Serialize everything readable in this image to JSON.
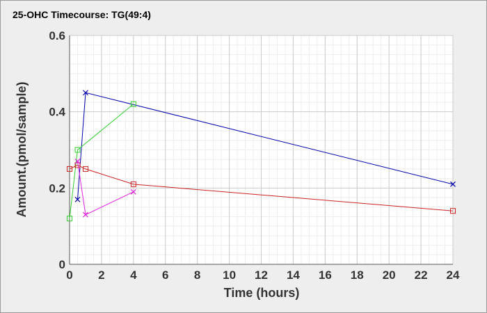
{
  "chart_data": {
    "type": "line",
    "title": "25-OHC Timecourse: TG(49:4)",
    "xlabel": "Time (hours)",
    "ylabel": "Amount.(pmol/sample)",
    "xlim": [
      0,
      24
    ],
    "ylim": [
      0,
      0.6
    ],
    "xticks": [
      0,
      2,
      4,
      6,
      8,
      10,
      12,
      14,
      16,
      18,
      20,
      22,
      24
    ],
    "yticks": [
      0,
      0.2,
      0.4,
      0.6
    ],
    "ytick_labels": [
      "0",
      "0.2",
      "0.4",
      "0.6"
    ],
    "grid": true,
    "series": [
      {
        "color": "#0000aa",
        "marker": "x",
        "x": [
          0.5,
          1,
          24
        ],
        "y": [
          0.17,
          0.45,
          0.21
        ]
      },
      {
        "color": "#33cc33",
        "marker": "square",
        "x": [
          0,
          0.5,
          4
        ],
        "y": [
          0.12,
          0.3,
          0.42
        ]
      },
      {
        "color": "#cc2222",
        "marker": "square",
        "x": [
          0,
          0.5,
          1,
          4,
          24
        ],
        "y": [
          0.25,
          0.26,
          0.25,
          0.21,
          0.14
        ]
      },
      {
        "color": "#dd22dd",
        "marker": "x",
        "x": [
          0.5,
          1,
          4
        ],
        "y": [
          0.27,
          0.13,
          0.19
        ]
      }
    ]
  }
}
